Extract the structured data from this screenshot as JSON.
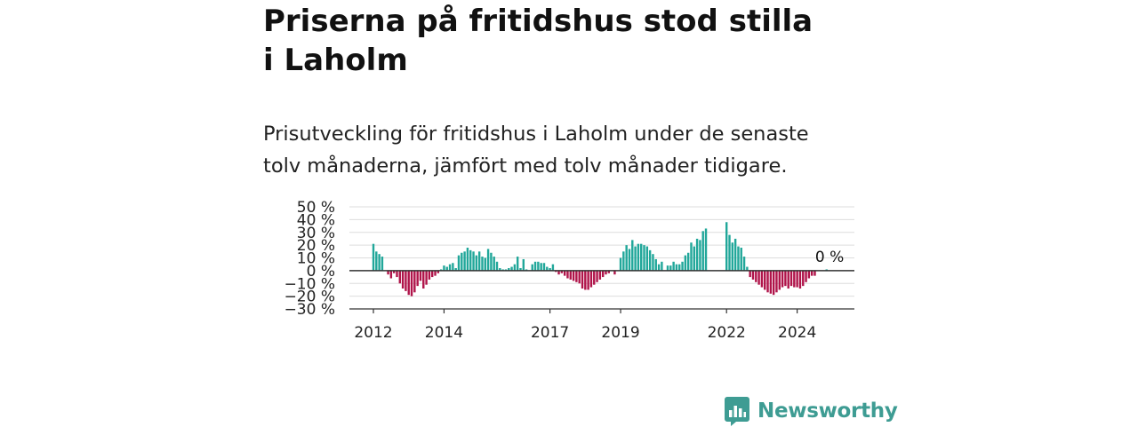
{
  "title": "Priserna på fritidshus stod stilla i Laholm",
  "subtitle": "Prisutveckling för fritidshus i Laholm under de senaste tolv månaderna, jämfört med tolv månader tidigare.",
  "brand": {
    "name": "Newsworthy",
    "icon": "newsworthy-logo-icon",
    "color": "#3e9c93"
  },
  "colors": {
    "positive": "#21a79a",
    "negative": "#b0144a",
    "axis": "#333333",
    "grid": "#dddddd",
    "text": "#222222"
  },
  "chart_data": {
    "type": "bar",
    "ylim": [
      -30,
      50
    ],
    "yticks": [
      50,
      40,
      30,
      20,
      10,
      0,
      -10,
      -20,
      -30
    ],
    "ytick_labels": [
      "50 %",
      "40 %",
      "30 %",
      "20 %",
      "10 %",
      "0 %",
      "−10 %",
      "−20 %",
      "−30 %"
    ],
    "xticks": [
      {
        "label": "2012",
        "date": "2012-01"
      },
      {
        "label": "2014",
        "date": "2014-01"
      },
      {
        "label": "2017",
        "date": "2017-01"
      },
      {
        "label": "2019",
        "date": "2019-01"
      },
      {
        "label": "2022",
        "date": "2022-01"
      },
      {
        "label": "2024",
        "date": "2024-01"
      }
    ],
    "grid": true,
    "last_value_label": "0 %",
    "series": [
      {
        "points": [
          {
            "x": "2012-01",
            "y": 21
          },
          {
            "x": "2012-02",
            "y": 15
          },
          {
            "x": "2012-03",
            "y": 13
          },
          {
            "x": "2012-04",
            "y": 11
          },
          {
            "x": "2012-05",
            "y": 0
          },
          {
            "x": "2012-06",
            "y": -3
          },
          {
            "x": "2012-07",
            "y": -6
          },
          {
            "x": "2012-08",
            "y": -2
          },
          {
            "x": "2012-09",
            "y": -5
          },
          {
            "x": "2012-10",
            "y": -10
          },
          {
            "x": "2012-11",
            "y": -14
          },
          {
            "x": "2012-12",
            "y": -16
          },
          {
            "x": "2013-01",
            "y": -19
          },
          {
            "x": "2013-02",
            "y": -20
          },
          {
            "x": "2013-03",
            "y": -17
          },
          {
            "x": "2013-04",
            "y": -12
          },
          {
            "x": "2013-05",
            "y": -8
          },
          {
            "x": "2013-06",
            "y": -14
          },
          {
            "x": "2013-07",
            "y": -11
          },
          {
            "x": "2013-08",
            "y": -7
          },
          {
            "x": "2013-09",
            "y": -5
          },
          {
            "x": "2013-10",
            "y": -4
          },
          {
            "x": "2013-11",
            "y": -2
          },
          {
            "x": "2013-12",
            "y": 1
          },
          {
            "x": "2014-01",
            "y": 4
          },
          {
            "x": "2014-02",
            "y": 3
          },
          {
            "x": "2014-03",
            "y": 5
          },
          {
            "x": "2014-04",
            "y": 6
          },
          {
            "x": "2014-05",
            "y": 2
          },
          {
            "x": "2014-06",
            "y": 12
          },
          {
            "x": "2014-07",
            "y": 14
          },
          {
            "x": "2014-08",
            "y": 15
          },
          {
            "x": "2014-09",
            "y": 18
          },
          {
            "x": "2014-10",
            "y": 16
          },
          {
            "x": "2014-11",
            "y": 15
          },
          {
            "x": "2014-12",
            "y": 12
          },
          {
            "x": "2015-01",
            "y": 15
          },
          {
            "x": "2015-02",
            "y": 11
          },
          {
            "x": "2015-03",
            "y": 10
          },
          {
            "x": "2015-04",
            "y": 17
          },
          {
            "x": "2015-05",
            "y": 14
          },
          {
            "x": "2015-06",
            "y": 11
          },
          {
            "x": "2015-07",
            "y": 7
          },
          {
            "x": "2015-08",
            "y": 2
          },
          {
            "x": "2015-09",
            "y": 1
          },
          {
            "x": "2015-10",
            "y": 1
          },
          {
            "x": "2015-11",
            "y": 2
          },
          {
            "x": "2015-12",
            "y": 3
          },
          {
            "x": "2016-01",
            "y": 5
          },
          {
            "x": "2016-02",
            "y": 11
          },
          {
            "x": "2016-03",
            "y": 2
          },
          {
            "x": "2016-04",
            "y": 9
          },
          {
            "x": "2016-05",
            "y": 1
          },
          {
            "x": "2016-06",
            "y": 0
          },
          {
            "x": "2016-07",
            "y": 5
          },
          {
            "x": "2016-08",
            "y": 7
          },
          {
            "x": "2016-09",
            "y": 7
          },
          {
            "x": "2016-10",
            "y": 6
          },
          {
            "x": "2016-11",
            "y": 6
          },
          {
            "x": "2016-12",
            "y": 3
          },
          {
            "x": "2017-01",
            "y": 2
          },
          {
            "x": "2017-02",
            "y": 5
          },
          {
            "x": "2017-03",
            "y": -1
          },
          {
            "x": "2017-04",
            "y": -3
          },
          {
            "x": "2017-05",
            "y": -2
          },
          {
            "x": "2017-06",
            "y": -4
          },
          {
            "x": "2017-07",
            "y": -6
          },
          {
            "x": "2017-08",
            "y": -7
          },
          {
            "x": "2017-09",
            "y": -8
          },
          {
            "x": "2017-10",
            "y": -9
          },
          {
            "x": "2017-11",
            "y": -10
          },
          {
            "x": "2017-12",
            "y": -14
          },
          {
            "x": "2018-01",
            "y": -15
          },
          {
            "x": "2018-02",
            "y": -15
          },
          {
            "x": "2018-03",
            "y": -13
          },
          {
            "x": "2018-04",
            "y": -11
          },
          {
            "x": "2018-05",
            "y": -9
          },
          {
            "x": "2018-06",
            "y": -7
          },
          {
            "x": "2018-07",
            "y": -5
          },
          {
            "x": "2018-08",
            "y": -3
          },
          {
            "x": "2018-09",
            "y": -2
          },
          {
            "x": "2018-10",
            "y": 0
          },
          {
            "x": "2018-11",
            "y": -3
          },
          {
            "x": "2018-12",
            "y": 0
          },
          {
            "x": "2019-01",
            "y": 10
          },
          {
            "x": "2019-02",
            "y": 15
          },
          {
            "x": "2019-03",
            "y": 20
          },
          {
            "x": "2019-04",
            "y": 17
          },
          {
            "x": "2019-05",
            "y": 24
          },
          {
            "x": "2019-06",
            "y": 19
          },
          {
            "x": "2019-07",
            "y": 21
          },
          {
            "x": "2019-08",
            "y": 21
          },
          {
            "x": "2019-09",
            "y": 20
          },
          {
            "x": "2019-10",
            "y": 19
          },
          {
            "x": "2019-11",
            "y": 16
          },
          {
            "x": "2019-12",
            "y": 13
          },
          {
            "x": "2020-01",
            "y": 9
          },
          {
            "x": "2020-02",
            "y": 5
          },
          {
            "x": "2020-03",
            "y": 7
          },
          {
            "x": "2020-04",
            "y": 0
          },
          {
            "x": "2020-05",
            "y": 4
          },
          {
            "x": "2020-06",
            "y": 4
          },
          {
            "x": "2020-07",
            "y": 7
          },
          {
            "x": "2020-08",
            "y": 5
          },
          {
            "x": "2020-09",
            "y": 5
          },
          {
            "x": "2020-10",
            "y": 7
          },
          {
            "x": "2020-11",
            "y": 12
          },
          {
            "x": "2020-12",
            "y": 14
          },
          {
            "x": "2021-01",
            "y": 22
          },
          {
            "x": "2021-02",
            "y": 19
          },
          {
            "x": "2021-03",
            "y": 25
          },
          {
            "x": "2021-04",
            "y": 24
          },
          {
            "x": "2021-05",
            "y": 31
          },
          {
            "x": "2021-06",
            "y": 33
          },
          {
            "x": "2021-07",
            "y": 0
          },
          {
            "x": "2021-08",
            "y": 0
          },
          {
            "x": "2021-09",
            "y": 0
          },
          {
            "x": "2021-10",
            "y": 0
          },
          {
            "x": "2021-11",
            "y": 0
          },
          {
            "x": "2021-12",
            "y": 0
          },
          {
            "x": "2022-01",
            "y": 38
          },
          {
            "x": "2022-02",
            "y": 28
          },
          {
            "x": "2022-03",
            "y": 22
          },
          {
            "x": "2022-04",
            "y": 25
          },
          {
            "x": "2022-05",
            "y": 19
          },
          {
            "x": "2022-06",
            "y": 18
          },
          {
            "x": "2022-07",
            "y": 11
          },
          {
            "x": "2022-08",
            "y": 3
          },
          {
            "x": "2022-09",
            "y": -5
          },
          {
            "x": "2022-10",
            "y": -7
          },
          {
            "x": "2022-11",
            "y": -9
          },
          {
            "x": "2022-12",
            "y": -11
          },
          {
            "x": "2023-01",
            "y": -13
          },
          {
            "x": "2023-02",
            "y": -15
          },
          {
            "x": "2023-03",
            "y": -17
          },
          {
            "x": "2023-04",
            "y": -18
          },
          {
            "x": "2023-05",
            "y": -19
          },
          {
            "x": "2023-06",
            "y": -17
          },
          {
            "x": "2023-07",
            "y": -15
          },
          {
            "x": "2023-08",
            "y": -13
          },
          {
            "x": "2023-09",
            "y": -12
          },
          {
            "x": "2023-10",
            "y": -14
          },
          {
            "x": "2023-11",
            "y": -12
          },
          {
            "x": "2023-12",
            "y": -13
          },
          {
            "x": "2024-01",
            "y": -13
          },
          {
            "x": "2024-02",
            "y": -14
          },
          {
            "x": "2024-03",
            "y": -12
          },
          {
            "x": "2024-04",
            "y": -9
          },
          {
            "x": "2024-05",
            "y": -6
          },
          {
            "x": "2024-06",
            "y": -4
          },
          {
            "x": "2024-07",
            "y": -4
          },
          {
            "x": "2024-08",
            "y": 0
          },
          {
            "x": "2024-09",
            "y": 0
          },
          {
            "x": "2024-10",
            "y": 0
          },
          {
            "x": "2024-11",
            "y": 1
          },
          {
            "x": "2024-12",
            "y": 0
          }
        ]
      }
    ]
  }
}
